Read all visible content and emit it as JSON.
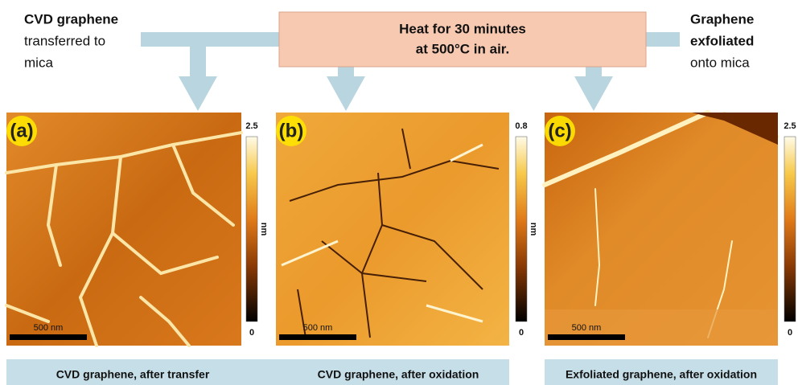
{
  "left_label": {
    "lines": [
      "CVD graphene",
      "transferred to",
      "mica"
    ]
  },
  "center_box": {
    "lines": [
      "Heat for 30 minutes",
      "at 500°C in air."
    ]
  },
  "right_label": {
    "lines": [
      "Graphene",
      "exfoliated",
      "onto mica"
    ]
  },
  "panels": [
    {
      "label": "(a)",
      "scale_bar": "500 nm",
      "colorbar": {
        "max": 2.5,
        "min": 0,
        "unit": "nm"
      }
    },
    {
      "label": "(b)",
      "scale_bar": "500 nm",
      "colorbar": {
        "max": 0.8,
        "min": 0,
        "unit": "nm"
      }
    },
    {
      "label": "(c)",
      "scale_bar": "500 nm",
      "colorbar": {
        "max": 2.5,
        "min": 0
      }
    }
  ],
  "captions": [
    "CVD graphene, after transfer",
    "CVD graphene, after oxidation",
    "Exfoliated graphene, after oxidation"
  ]
}
